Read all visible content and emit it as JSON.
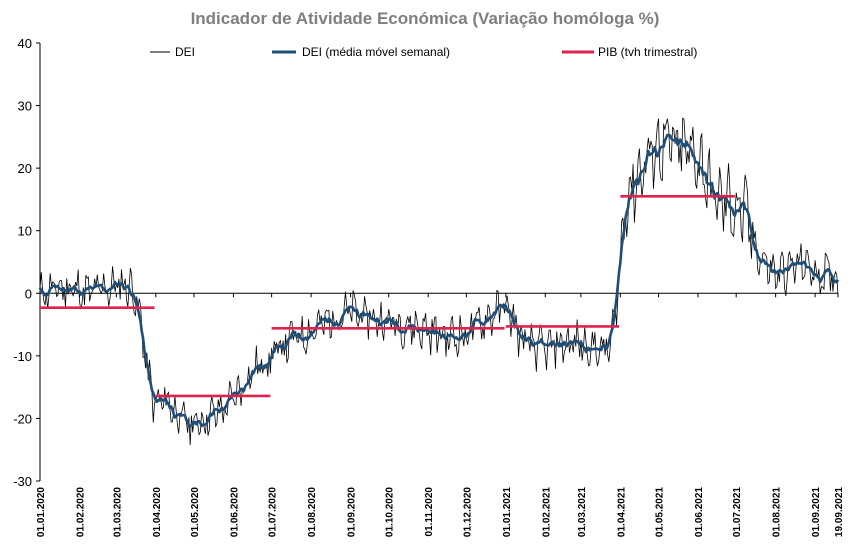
{
  "chart_data": {
    "type": "line",
    "title": "Indicador de Atividade Económica (Variação homóloga %)",
    "xlabel": "",
    "ylabel": "",
    "ylim": [
      -30,
      40
    ],
    "yticks": [
      40,
      30,
      20,
      10,
      0,
      -10,
      -20,
      -30
    ],
    "x_range_days": [
      0,
      627
    ],
    "x_ticks": [
      {
        "day": 0,
        "label": "01.01.2020"
      },
      {
        "day": 31,
        "label": "01.02.2020"
      },
      {
        "day": 60,
        "label": "01.03.2020"
      },
      {
        "day": 91,
        "label": "01.04.2020"
      },
      {
        "day": 121,
        "label": "01.05.2020"
      },
      {
        "day": 152,
        "label": "01.06.2020"
      },
      {
        "day": 182,
        "label": "01.07.2020"
      },
      {
        "day": 213,
        "label": "01.08.2020"
      },
      {
        "day": 244,
        "label": "01.09.2020"
      },
      {
        "day": 274,
        "label": "01.10.2020"
      },
      {
        "day": 305,
        "label": "01.11.2020"
      },
      {
        "day": 335,
        "label": "01.12.2020"
      },
      {
        "day": 366,
        "label": "01.01.2021"
      },
      {
        "day": 397,
        "label": "01.02.2021"
      },
      {
        "day": 425,
        "label": "01.03.2021"
      },
      {
        "day": 456,
        "label": "01.04.2021"
      },
      {
        "day": 486,
        "label": "01.05.2021"
      },
      {
        "day": 517,
        "label": "01.06.2021"
      },
      {
        "day": 547,
        "label": "01.07.2021"
      },
      {
        "day": 578,
        "label": "01.08.2021"
      },
      {
        "day": 609,
        "label": "01.09.2021"
      },
      {
        "day": 627,
        "label": "19.09.2021"
      }
    ],
    "legend": {
      "placement": "top",
      "entries": [
        "DEI",
        "DEI (média móvel semanal)",
        "PIB (tvh trimestral)"
      ]
    },
    "colors": {
      "dei": "#000000",
      "dei_ma": "#1f4e79",
      "pib": "#e0234e",
      "axis": "#000000"
    },
    "series": [
      {
        "name": "DEI",
        "style": "daily",
        "anchors_day": [
          0,
          20,
          40,
          55,
          65,
          72,
          78,
          84,
          90,
          100,
          110,
          120,
          130,
          140,
          152,
          165,
          182,
          200,
          213,
          230,
          244,
          260,
          274,
          290,
          305,
          320,
          335,
          350,
          366,
          380,
          397,
          410,
          425,
          440,
          448,
          455,
          460,
          470,
          486,
          500,
          517,
          530,
          547,
          555,
          565,
          578,
          590,
          600,
          609,
          620,
          627
        ],
        "anchors_value": [
          0,
          1,
          0,
          1,
          1.5,
          1,
          -3,
          -12,
          -18,
          -17,
          -20,
          -21,
          -20,
          -19,
          -17,
          -13,
          -10,
          -7,
          -6,
          -4,
          -3,
          -4,
          -4.5,
          -5,
          -6,
          -7,
          -6.5,
          -4,
          -2,
          -8,
          -9,
          -8,
          -8,
          -9,
          -9,
          2,
          15,
          19,
          24,
          23,
          22,
          15,
          14,
          12,
          6,
          3,
          4,
          5,
          3,
          3,
          2
        ],
        "noise_amplitude": 3.2,
        "seed": 11
      },
      {
        "name": "DEI (média móvel semanal)",
        "style": "moving_average",
        "window": 7,
        "source": "DEI"
      },
      {
        "name": "PIB (tvh trimestral)",
        "style": "step",
        "segments": [
          {
            "from_day": 0,
            "to_day": 90,
            "value": -2.3
          },
          {
            "from_day": 91,
            "to_day": 181,
            "value": -16.4
          },
          {
            "from_day": 182,
            "to_day": 365,
            "value": -5.6
          },
          {
            "from_day": 366,
            "to_day": 455,
            "value": -5.3
          },
          {
            "from_day": 456,
            "to_day": 546,
            "value": 15.5
          }
        ]
      }
    ]
  }
}
